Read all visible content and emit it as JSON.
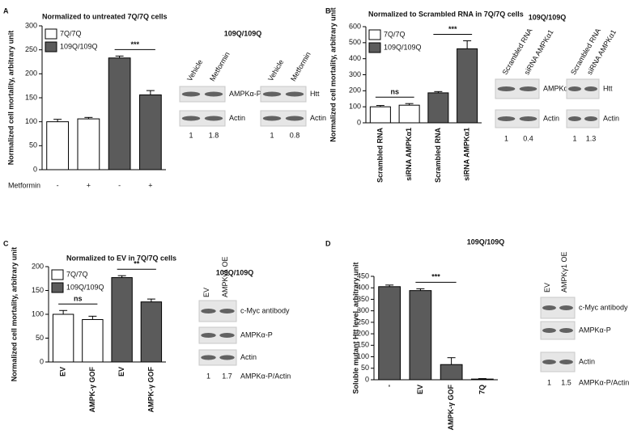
{
  "panel_letters": [
    "A",
    "B",
    "C",
    "D"
  ],
  "chart_data": [
    {
      "type": "bar",
      "title": "Normalized to untreated 7Q/7Q cells",
      "y_label": "Normalized cell mortality, arbitrary unit",
      "category_axis_label": "Metformin",
      "categories": [
        "-",
        "+",
        "-",
        "+"
      ],
      "series": [
        {
          "name": "7Q/7Q",
          "color": "#ffffff",
          "values": [
            100,
            106,
            null,
            null
          ],
          "errors": [
            5,
            3,
            null,
            null
          ]
        },
        {
          "name": "109Q/109Q",
          "color": "#5b5b5b",
          "values": [
            null,
            null,
            233,
            156
          ],
          "errors": [
            null,
            null,
            4,
            9
          ]
        }
      ],
      "ylim": [
        0,
        300
      ],
      "yticks": [
        0,
        50,
        100,
        150,
        200,
        250,
        300
      ],
      "legend": true,
      "annotations": [
        {
          "text": "***",
          "categories": [
            2,
            3
          ]
        }
      ]
    },
    {
      "type": "bar",
      "title": "Normalized to Scrambled RNA in 7Q/7Q cells",
      "y_label": "Normalized cell mortality, arbitrary unit",
      "categories": [
        "Scrambled RNA",
        "siRNA AMPKα1",
        "Scrambled RNA",
        "siRNA AMPKα1"
      ],
      "series": [
        {
          "name": "7Q/7Q",
          "color": "#ffffff",
          "values": [
            100,
            110,
            null,
            null
          ],
          "errors": [
            8,
            10,
            null,
            null
          ]
        },
        {
          "name": "109Q/109Q",
          "color": "#5b5b5b",
          "values": [
            null,
            null,
            187,
            462
          ],
          "errors": [
            null,
            null,
            8,
            50
          ]
        }
      ],
      "ylim": [
        0,
        600
      ],
      "yticks": [
        0,
        100,
        200,
        300,
        400,
        500,
        600
      ],
      "legend": true,
      "annotations": [
        {
          "text": "ns",
          "categories": [
            0,
            1
          ]
        },
        {
          "text": "***",
          "categories": [
            2,
            3
          ]
        }
      ]
    },
    {
      "type": "bar",
      "title": "Normalized to EV in 7Q/7Q cells",
      "y_label": "Normalized cell mortality, arbitrary unit",
      "categories": [
        "EV",
        "AMPK-γ GOF",
        "EV",
        "AMPK-γ GOF"
      ],
      "series": [
        {
          "name": "7Q/7Q",
          "color": "#ffffff",
          "values": [
            100,
            89,
            null,
            null
          ],
          "errors": [
            8,
            7,
            null,
            null
          ]
        },
        {
          "name": "109Q/109Q",
          "color": "#5b5b5b",
          "values": [
            null,
            null,
            177,
            126
          ],
          "errors": [
            null,
            null,
            4,
            6
          ]
        }
      ],
      "ylim": [
        0,
        200
      ],
      "yticks": [
        0,
        50,
        100,
        150,
        200
      ],
      "legend": true,
      "annotations": [
        {
          "text": "ns",
          "categories": [
            0,
            1
          ]
        },
        {
          "text": "**",
          "categories": [
            2,
            3
          ]
        }
      ]
    },
    {
      "type": "bar",
      "title": "109Q/109Q",
      "y_label": "Soluble mutant Htt level, arbitrary unit",
      "categories": [
        "-",
        "EV",
        "AMPK-γ GOF",
        "7Q"
      ],
      "color": "#5b5b5b",
      "values": [
        405,
        388,
        66,
        3
      ],
      "errors": [
        7,
        8,
        30,
        2
      ],
      "ylim": [
        0,
        450
      ],
      "yticks": [
        0,
        50,
        100,
        150,
        200,
        250,
        300,
        350,
        400,
        450
      ],
      "legend": false,
      "annotations": [
        {
          "text": "***",
          "categories": [
            1,
            2
          ]
        }
      ]
    }
  ],
  "blots": [
    {
      "header": "109Q/109Q",
      "groups": [
        {
          "lanes": [
            "Vehicle",
            "Metformin"
          ],
          "rows": [
            "AMPKα-P",
            "Actin"
          ],
          "quant": [
            1,
            1.8
          ]
        },
        {
          "lanes": [
            "Vehicle",
            "Metformin"
          ],
          "rows": [
            "Htt",
            "Actin"
          ],
          "quant": [
            1,
            0.8
          ]
        }
      ]
    },
    {
      "header": "109Q/109Q",
      "groups": [
        {
          "lanes": [
            "Scrambled RNA",
            "siRNA AMPKα1"
          ],
          "rows": [
            "AMPKα1",
            "Actin"
          ],
          "quant": [
            1,
            0.4
          ]
        },
        {
          "lanes": [
            "Scrambled RNA",
            "siRNA AMPKα1"
          ],
          "rows": [
            "Htt",
            "Actin"
          ],
          "quant": [
            1,
            1.3
          ]
        }
      ]
    },
    {
      "header": "109Q/109Q",
      "groups": [
        {
          "lanes": [
            "EV",
            "AMPKγ1 OE"
          ],
          "rows": [
            "c-Myc antibody",
            "AMPKα-P",
            "Actin"
          ],
          "quant": [
            1,
            1.7
          ],
          "quant_label": "AMPKα-P/Actin"
        }
      ]
    },
    {
      "groups": [
        {
          "lanes": [
            "EV",
            "AMPKγ1 OE"
          ],
          "rows": [
            "c-Myc antibody",
            "AMPKα-P",
            "Actin"
          ],
          "quant": [
            1,
            1.5
          ],
          "quant_label": "AMPKα-P/Actin"
        }
      ]
    }
  ]
}
